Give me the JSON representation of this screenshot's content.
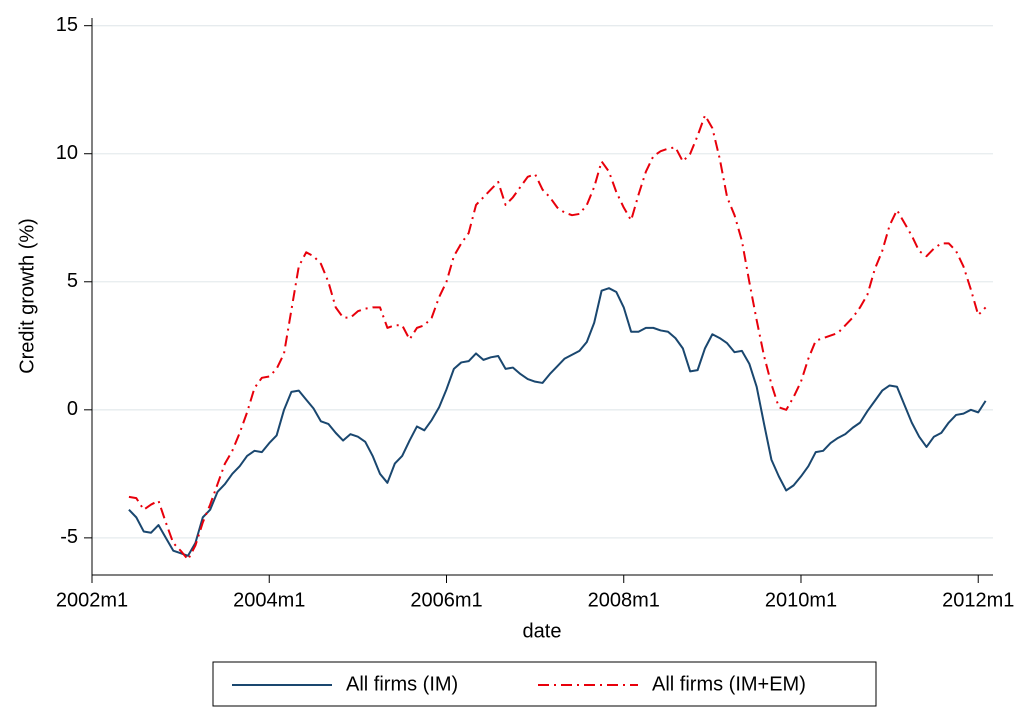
{
  "chart_data": {
    "type": "line",
    "x_label": "date",
    "y_label": "Credit growth (%)",
    "x": [
      "2002m6",
      "2002m7",
      "2002m8",
      "2002m9",
      "2002m10",
      "2002m11",
      "2002m12",
      "2003m1",
      "2003m2",
      "2003m3",
      "2003m4",
      "2003m5",
      "2003m6",
      "2003m7",
      "2003m8",
      "2003m9",
      "2003m10",
      "2003m11",
      "2003m12",
      "2004m1",
      "2004m2",
      "2004m3",
      "2004m4",
      "2004m5",
      "2004m6",
      "2004m7",
      "2004m8",
      "2004m9",
      "2004m10",
      "2004m11",
      "2004m12",
      "2005m1",
      "2005m2",
      "2005m3",
      "2005m4",
      "2005m5",
      "2005m6",
      "2005m7",
      "2005m8",
      "2005m9",
      "2005m10",
      "2005m11",
      "2005m12",
      "2006m1",
      "2006m2",
      "2006m3",
      "2006m4",
      "2006m5",
      "2006m6",
      "2006m7",
      "2006m8",
      "2006m9",
      "2006m10",
      "2006m11",
      "2006m12",
      "2007m1",
      "2007m2",
      "2007m3",
      "2007m4",
      "2007m5",
      "2007m6",
      "2007m7",
      "2007m8",
      "2007m9",
      "2007m10",
      "2007m11",
      "2007m12",
      "2008m1",
      "2008m2",
      "2008m3",
      "2008m4",
      "2008m5",
      "2008m6",
      "2008m7",
      "2008m8",
      "2008m9",
      "2008m10",
      "2008m11",
      "2008m12",
      "2009m1",
      "2009m2",
      "2009m3",
      "2009m4",
      "2009m5",
      "2009m6",
      "2009m7",
      "2009m8",
      "2009m9",
      "2009m10",
      "2009m11",
      "2009m12",
      "2010m1",
      "2010m2",
      "2010m3",
      "2010m4",
      "2010m5",
      "2010m6",
      "2010m7",
      "2010m8",
      "2010m9",
      "2010m10",
      "2010m11",
      "2010m12",
      "2011m1",
      "2011m2",
      "2011m3",
      "2011m4",
      "2011m5",
      "2011m6",
      "2011m7",
      "2011m8",
      "2011m9",
      "2011m10",
      "2011m11",
      "2011m12",
      "2012m1",
      "2012m2"
    ],
    "series": [
      {
        "name": "All firms (IM)",
        "color": "#1a476f",
        "dash": "solid",
        "values": [
          -3.9,
          -4.2,
          -4.75,
          -4.8,
          -4.5,
          -5.0,
          -5.5,
          -5.6,
          -5.7,
          -5.2,
          -4.2,
          -3.9,
          -3.2,
          -2.9,
          -2.5,
          -2.2,
          -1.8,
          -1.6,
          -1.65,
          -1.3,
          -1.0,
          0.0,
          0.7,
          0.75,
          0.4,
          0.05,
          -0.45,
          -0.55,
          -0.9,
          -1.2,
          -0.95,
          -1.05,
          -1.25,
          -1.8,
          -2.5,
          -2.85,
          -2.1,
          -1.8,
          -1.2,
          -0.65,
          -0.8,
          -0.4,
          0.1,
          0.8,
          1.6,
          1.85,
          1.9,
          2.2,
          1.95,
          2.05,
          2.1,
          1.6,
          1.65,
          1.4,
          1.2,
          1.1,
          1.05,
          1.4,
          1.7,
          2.0,
          2.15,
          2.3,
          2.65,
          3.4,
          4.65,
          4.75,
          4.6,
          4.0,
          3.05,
          3.05,
          3.2,
          3.2,
          3.1,
          3.05,
          2.8,
          2.4,
          1.5,
          1.55,
          2.4,
          2.95,
          2.8,
          2.6,
          2.25,
          2.3,
          1.8,
          0.9,
          -0.55,
          -1.95,
          -2.6,
          -3.15,
          -2.95,
          -2.6,
          -2.2,
          -1.65,
          -1.6,
          -1.3,
          -1.1,
          -0.95,
          -0.7,
          -0.5,
          -0.05,
          0.35,
          0.75,
          0.95,
          0.9,
          0.2,
          -0.5,
          -1.05,
          -1.45,
          -1.05,
          -0.9,
          -0.5,
          -0.2,
          -0.15,
          0.0,
          -0.1,
          0.35
        ]
      },
      {
        "name": "All firms (IM+EM)",
        "color": "#e8000b",
        "dash": "dashdot",
        "values": [
          -3.4,
          -3.45,
          -3.9,
          -3.7,
          -3.55,
          -4.4,
          -5.2,
          -5.5,
          -5.85,
          -5.3,
          -4.4,
          -3.7,
          -2.9,
          -2.1,
          -1.6,
          -0.9,
          -0.1,
          0.85,
          1.25,
          1.3,
          1.6,
          2.2,
          3.9,
          5.6,
          6.15,
          6.0,
          5.7,
          5.0,
          4.0,
          3.6,
          3.6,
          3.85,
          3.95,
          4.0,
          4.0,
          3.2,
          3.3,
          3.3,
          2.75,
          3.2,
          3.3,
          3.6,
          4.4,
          5.0,
          6.0,
          6.5,
          6.9,
          8.0,
          8.3,
          8.6,
          8.9,
          8.0,
          8.3,
          8.7,
          9.1,
          9.2,
          8.6,
          8.3,
          7.9,
          7.7,
          7.6,
          7.65,
          8.0,
          8.7,
          9.7,
          9.3,
          8.5,
          7.9,
          7.4,
          8.4,
          9.3,
          9.9,
          10.1,
          10.2,
          10.25,
          9.7,
          10.0,
          10.7,
          11.5,
          11.0,
          9.8,
          8.3,
          7.6,
          6.6,
          5.0,
          3.5,
          2.1,
          1.0,
          0.1,
          0.0,
          0.5,
          1.1,
          2.0,
          2.7,
          2.8,
          2.9,
          3.0,
          3.3,
          3.6,
          4.0,
          4.5,
          5.5,
          6.2,
          7.2,
          7.8,
          7.3,
          6.8,
          6.2,
          6.0,
          6.3,
          6.5,
          6.5,
          6.2,
          5.6,
          4.7,
          3.7,
          4.0
        ]
      }
    ],
    "xlim": [
      "2002m1",
      "2012m3"
    ],
    "xticks": [
      "2002m1",
      "2004m1",
      "2006m1",
      "2008m1",
      "2010m1",
      "2012m1"
    ],
    "ylim": [
      -6.45,
      15.3
    ],
    "yticks": [
      -5,
      0,
      5,
      10,
      15
    ],
    "grid": true,
    "legend": "bottom"
  }
}
